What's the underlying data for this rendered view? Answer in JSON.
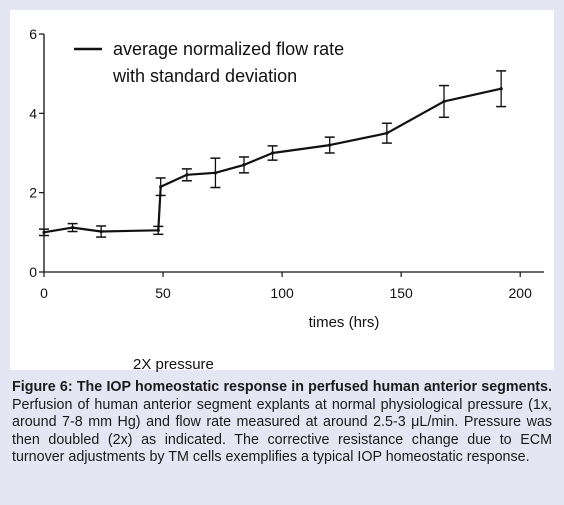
{
  "chart_data": {
    "type": "line",
    "title": "",
    "xlabel": "times  (hrs)",
    "ylabel": "",
    "xlim": [
      0,
      210
    ],
    "ylim": [
      0,
      6
    ],
    "xticks": [
      0,
      50,
      100,
      150,
      200
    ],
    "yticks": [
      0,
      2,
      4,
      6
    ],
    "legend": [
      "average normalized flow rate",
      "with standard deviation"
    ],
    "legend_position": "top-left",
    "grid": false,
    "series": [
      {
        "name": "average normalized flow rate with standard deviation",
        "x": [
          0,
          12,
          24,
          48,
          49,
          60,
          72,
          84,
          96,
          120,
          144,
          168,
          192
        ],
        "y": [
          1.0,
          1.12,
          1.02,
          1.05,
          2.15,
          2.45,
          2.5,
          2.7,
          3.0,
          3.2,
          3.5,
          4.3,
          4.62
        ],
        "err": [
          0.08,
          0.1,
          0.14,
          0.1,
          0.22,
          0.15,
          0.37,
          0.2,
          0.18,
          0.2,
          0.25,
          0.4,
          0.45
        ]
      }
    ]
  },
  "pressure_note": "2X pressure",
  "caption": {
    "bold": "Figure 6: The IOP homeostatic response in perfused human anterior segments.",
    "text": " Perfusion of human anterior segment explants at normal physiological pressure (1x, around 7-8 mm Hg) and flow rate measured at around 2.5-3 μL/min. Pressure was then doubled (2x) as indicated. The corrective resistance change due to ECM turnover adjustments by TM cells exemplifies a typical IOP homeostatic response."
  }
}
